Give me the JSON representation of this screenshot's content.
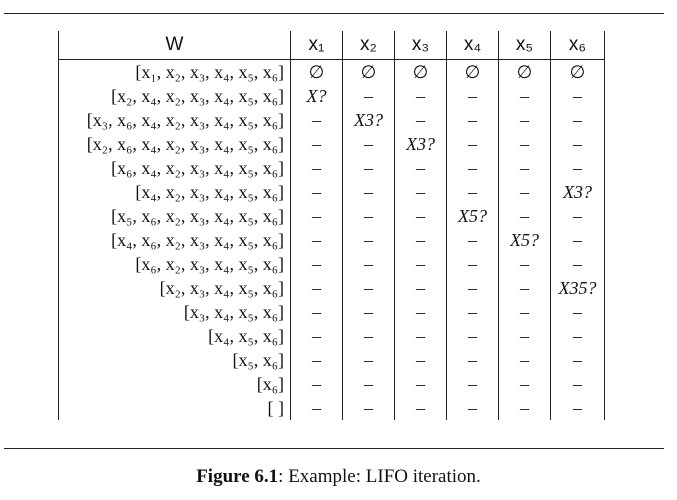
{
  "table": {
    "headers": [
      "W",
      "x₁",
      "x₂",
      "x₃",
      "x₄",
      "x₅",
      "x₆"
    ],
    "rows": [
      {
        "w": "[x₁, x₂, x₃, x₄, x₅, x₆]",
        "cells": [
          "∅",
          "∅",
          "∅",
          "∅",
          "∅",
          "∅"
        ]
      },
      {
        "w": "[x₂, x₄, x₂, x₃, x₄, x₅, x₆]",
        "cells": [
          "X?",
          "–",
          "–",
          "–",
          "–",
          "–"
        ]
      },
      {
        "w": "[x₃, x₆, x₄, x₂, x₃, x₄, x₅, x₆]",
        "cells": [
          "–",
          "X3?",
          "–",
          "–",
          "–",
          "–"
        ]
      },
      {
        "w": "[x₂, x₆, x₄, x₂, x₃, x₄, x₅, x₆]",
        "cells": [
          "–",
          "–",
          "X3?",
          "–",
          "–",
          "–"
        ]
      },
      {
        "w": "[x₆, x₄, x₂, x₃, x₄, x₅, x₆]",
        "cells": [
          "–",
          "–",
          "–",
          "–",
          "–",
          "–"
        ]
      },
      {
        "w": "[x₄, x₂, x₃, x₄, x₅, x₆]",
        "cells": [
          "–",
          "–",
          "–",
          "–",
          "–",
          "X3?"
        ]
      },
      {
        "w": "[x₅, x₆, x₂, x₃, x₄, x₅, x₆]",
        "cells": [
          "–",
          "–",
          "–",
          "X5?",
          "–",
          "–"
        ]
      },
      {
        "w": "[x₄, x₆, x₂, x₃, x₄, x₅, x₆]",
        "cells": [
          "–",
          "–",
          "–",
          "–",
          "X5?",
          "–"
        ]
      },
      {
        "w": "[x₆, x₂, x₃, x₄, x₅, x₆]",
        "cells": [
          "–",
          "–",
          "–",
          "–",
          "–",
          "–"
        ]
      },
      {
        "w": "[x₂, x₃, x₄, x₅, x₆]",
        "cells": [
          "–",
          "–",
          "–",
          "–",
          "–",
          "X35?"
        ]
      },
      {
        "w": "[x₃, x₄, x₅, x₆]",
        "cells": [
          "–",
          "–",
          "–",
          "–",
          "–",
          "–"
        ]
      },
      {
        "w": "[x₄, x₅, x₆]",
        "cells": [
          "–",
          "–",
          "–",
          "–",
          "–",
          "–"
        ]
      },
      {
        "w": "[x₅, x₆]",
        "cells": [
          "–",
          "–",
          "–",
          "–",
          "–",
          "–"
        ]
      },
      {
        "w": "[x₆]",
        "cells": [
          "–",
          "–",
          "–",
          "–",
          "–",
          "–"
        ]
      },
      {
        "w": "[ ]",
        "cells": [
          "–",
          "–",
          "–",
          "–",
          "–",
          "–"
        ]
      }
    ]
  },
  "caption": {
    "label": "Figure 6.1",
    "text": ": Example: LIFO iteration."
  }
}
